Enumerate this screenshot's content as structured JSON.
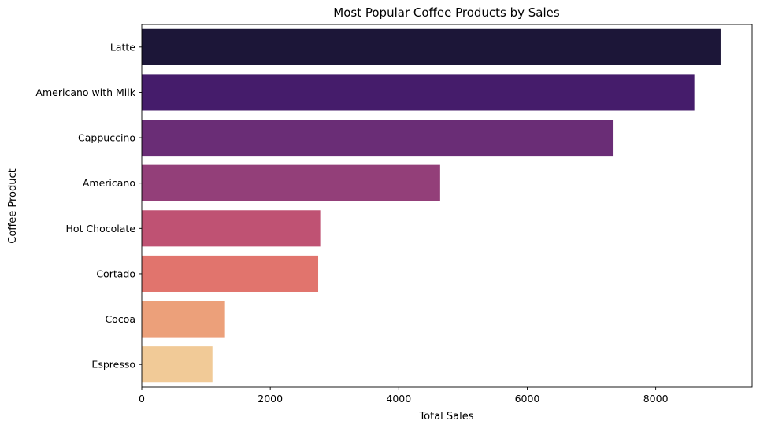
{
  "chart_data": {
    "type": "bar",
    "orientation": "horizontal",
    "title": "Most Popular Coffee Products by Sales",
    "xlabel": "Total Sales",
    "ylabel": "Coffee Product",
    "categories": [
      "Latte",
      "Americano with Milk",
      "Cappuccino",
      "Americano",
      "Hot Chocolate",
      "Cortado",
      "Cocoa",
      "Espresso"
    ],
    "values": [
      9009,
      8601,
      7331,
      4644,
      2778,
      2746,
      1295,
      1100
    ],
    "colors": [
      "#1c1638",
      "#451c6b",
      "#6a2d76",
      "#933f79",
      "#bf5273",
      "#e1746d",
      "#eca07a",
      "#f1ca97"
    ],
    "xlim": [
      0,
      9500
    ],
    "xticks": [
      0,
      2000,
      4000,
      6000,
      8000
    ],
    "grid": false,
    "legend": "none"
  }
}
